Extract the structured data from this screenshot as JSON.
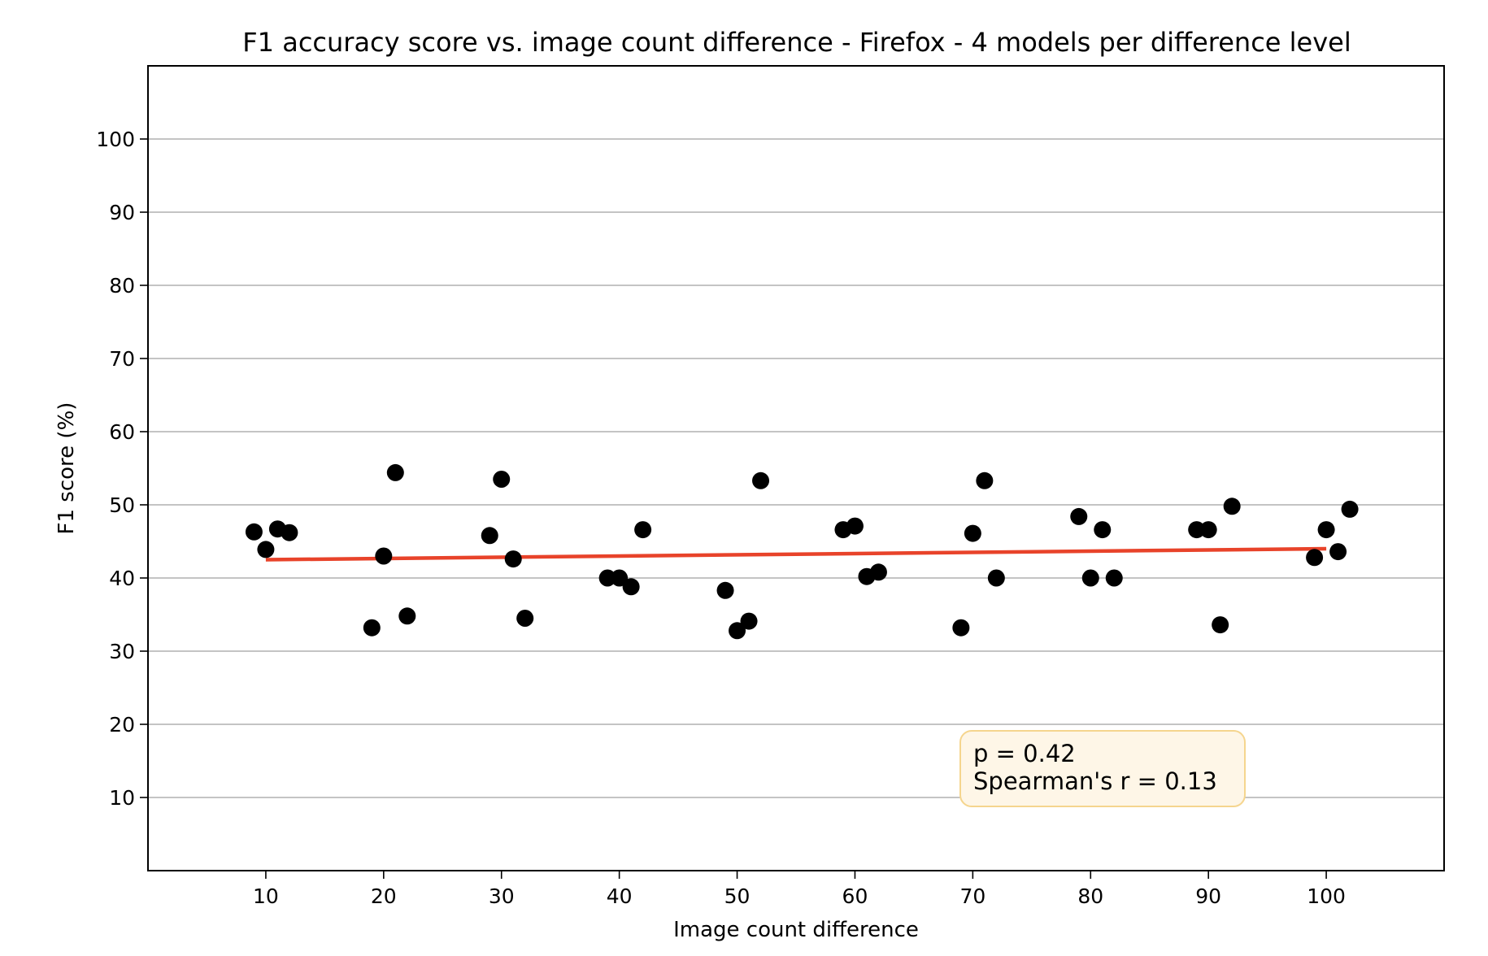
{
  "chart_data": {
    "type": "scatter",
    "title": "F1 accuracy score vs. image count difference - Firefox - 4 models per difference level",
    "xlabel": "Image count difference",
    "ylabel": "F1 score (%)",
    "xlim": [
      0,
      110
    ],
    "ylim": [
      0,
      110
    ],
    "xticks": [
      10,
      20,
      30,
      40,
      50,
      60,
      70,
      80,
      90,
      100
    ],
    "yticks": [
      10,
      20,
      30,
      40,
      50,
      60,
      70,
      80,
      90,
      100
    ],
    "grid": "horizontal",
    "point_color": "#000000",
    "trend_color": "#e8432a",
    "points": [
      {
        "x": 9,
        "y": 46.3
      },
      {
        "x": 10,
        "y": 43.9
      },
      {
        "x": 11,
        "y": 46.7
      },
      {
        "x": 12,
        "y": 46.2
      },
      {
        "x": 19,
        "y": 33.2
      },
      {
        "x": 20,
        "y": 43.0
      },
      {
        "x": 21,
        "y": 54.4
      },
      {
        "x": 22,
        "y": 34.8
      },
      {
        "x": 29,
        "y": 45.8
      },
      {
        "x": 30,
        "y": 53.5
      },
      {
        "x": 31,
        "y": 42.6
      },
      {
        "x": 32,
        "y": 34.5
      },
      {
        "x": 39,
        "y": 40.0
      },
      {
        "x": 40,
        "y": 40.0
      },
      {
        "x": 41,
        "y": 38.8
      },
      {
        "x": 42,
        "y": 46.6
      },
      {
        "x": 49,
        "y": 38.3
      },
      {
        "x": 50,
        "y": 32.8
      },
      {
        "x": 51,
        "y": 34.1
      },
      {
        "x": 52,
        "y": 53.3
      },
      {
        "x": 59,
        "y": 46.6
      },
      {
        "x": 60,
        "y": 47.1
      },
      {
        "x": 61,
        "y": 40.2
      },
      {
        "x": 62,
        "y": 40.8
      },
      {
        "x": 69,
        "y": 33.2
      },
      {
        "x": 70,
        "y": 46.1
      },
      {
        "x": 71,
        "y": 53.3
      },
      {
        "x": 72,
        "y": 40.0
      },
      {
        "x": 79,
        "y": 48.4
      },
      {
        "x": 80,
        "y": 40.0
      },
      {
        "x": 81,
        "y": 46.6
      },
      {
        "x": 82,
        "y": 40.0
      },
      {
        "x": 89,
        "y": 46.6
      },
      {
        "x": 90,
        "y": 46.6
      },
      {
        "x": 91,
        "y": 33.6
      },
      {
        "x": 92,
        "y": 49.8
      },
      {
        "x": 99,
        "y": 42.8
      },
      {
        "x": 100,
        "y": 46.6
      },
      {
        "x": 101,
        "y": 43.6
      },
      {
        "x": 102,
        "y": 49.4
      }
    ],
    "trend_line": {
      "x": [
        10,
        100
      ],
      "y": [
        42.5,
        44.0
      ]
    },
    "annotation": {
      "p_text": "p = 0.42",
      "r_text": "Spearman's r = 0.13",
      "box_fill": "#fef6e7",
      "box_stroke": "#f5d58e"
    }
  }
}
